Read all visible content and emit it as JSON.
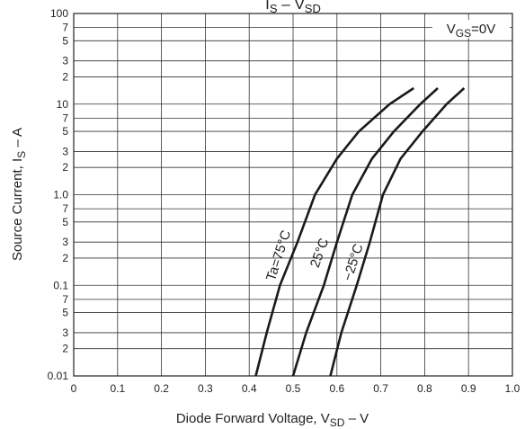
{
  "chart_data": {
    "type": "line",
    "title": {
      "main": "I",
      "sub": "S",
      "mid": " – V",
      "sub2": "SD"
    },
    "xlabel": {
      "main": "Diode Forward Voltage, V",
      "sub": "SD",
      "rest": " – V"
    },
    "ylabel": {
      "main": "Source Current, I",
      "sub": "S",
      "rest": " – A"
    },
    "annotation": {
      "main": "V",
      "sub": "GS",
      "rest": "=0V"
    },
    "xlim": [
      0,
      1
    ],
    "xticks": [
      0,
      0.1,
      0.2,
      0.3,
      0.4,
      0.5,
      0.6,
      0.7,
      0.8,
      0.9,
      {
        "value": 1,
        "label": "1.0"
      }
    ],
    "ylim": [
      0.01,
      100
    ],
    "log_y": true,
    "grid": true,
    "color": "#1a1a1a",
    "yticks": [
      100,
      {
        "value": 70,
        "label": "7"
      },
      {
        "value": 50,
        "label": "5"
      },
      {
        "value": 30,
        "label": "3"
      },
      {
        "value": 20,
        "label": "2"
      },
      10,
      {
        "value": 7,
        "label": "7"
      },
      {
        "value": 5,
        "label": "5"
      },
      {
        "value": 3,
        "label": "3"
      },
      {
        "value": 2,
        "label": "2"
      },
      {
        "value": 1,
        "label": "1.0"
      },
      {
        "value": 0.7,
        "label": "7"
      },
      {
        "value": 0.5,
        "label": "5"
      },
      {
        "value": 0.3,
        "label": "3"
      },
      {
        "value": 0.2,
        "label": "2"
      },
      0.1,
      {
        "value": 0.07,
        "label": "7"
      },
      {
        "value": 0.05,
        "label": "5"
      },
      {
        "value": 0.03,
        "label": "3"
      },
      {
        "value": 0.02,
        "label": "2"
      },
      0.01
    ],
    "series": [
      {
        "name": "Ta=75°C",
        "x": [
          0.415,
          0.44,
          0.47,
          0.51,
          0.55,
          0.6,
          0.65,
          0.72,
          0.775
        ],
        "values": [
          0.01,
          0.03,
          0.1,
          0.3,
          1,
          2.5,
          5,
          10,
          15
        ]
      },
      {
        "name": "25°C",
        "x": [
          0.5,
          0.53,
          0.57,
          0.6,
          0.635,
          0.68,
          0.73,
          0.79,
          0.83
        ],
        "values": [
          0.01,
          0.03,
          0.1,
          0.3,
          1,
          2.5,
          5,
          10,
          15
        ]
      },
      {
        "name": "−25°C",
        "x": [
          0.585,
          0.61,
          0.645,
          0.675,
          0.705,
          0.745,
          0.795,
          0.85,
          0.89
        ],
        "values": [
          0.01,
          0.03,
          0.1,
          0.3,
          1,
          2.5,
          5,
          10,
          15
        ]
      }
    ]
  }
}
